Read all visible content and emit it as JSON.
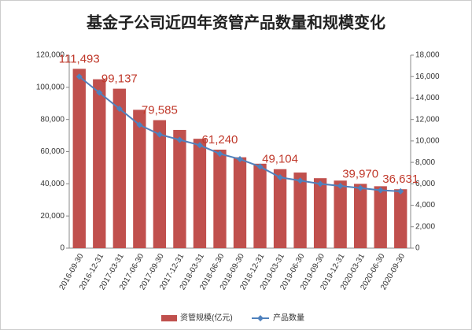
{
  "chart_data": {
    "type": "bar",
    "title": "基金子公司近四年资管产品数量和规模变化",
    "categories": [
      "2016-09-30",
      "2016-12-31",
      "2017-03-31",
      "2017-06-30",
      "2017-09-30",
      "2017-12-31",
      "2018-03-31",
      "2018-06-30",
      "2018-09-30",
      "2018-12-31",
      "2019-03-31",
      "2019-06-30",
      "2019-09-30",
      "2019-12-31",
      "2020-03-31",
      "2020-06-30",
      "2020-09-30"
    ],
    "series": [
      {
        "name": "资管规模(亿元)",
        "color": "#c0504d",
        "values": [
          111493,
          105000,
          99137,
          86000,
          79585,
          73500,
          68000,
          61240,
          56500,
          52500,
          49104,
          47000,
          43500,
          42000,
          39970,
          38500,
          36631
        ],
        "value_labels": [
          "111,493",
          null,
          "99,137",
          null,
          "79,585",
          null,
          null,
          "61,240",
          null,
          null,
          "49,104",
          null,
          null,
          null,
          "39,970",
          null,
          "36,631"
        ]
      },
      {
        "name": "产品数量",
        "color": "#4f81bd",
        "type": "line",
        "axis": "y2",
        "values": [
          16000,
          14500,
          13000,
          11500,
          10600,
          10100,
          9600,
          8800,
          8300,
          7600,
          6600,
          6300,
          6000,
          5800,
          5600,
          5400,
          5300
        ]
      }
    ],
    "ylim": [
      0,
      120000
    ],
    "yticks": [
      0,
      {
        "value": 20000,
        "label": "20,000"
      },
      {
        "value": 40000,
        "label": "40,000"
      },
      {
        "value": 60000,
        "label": "60,000"
      },
      {
        "value": 80000,
        "label": "80,000"
      },
      {
        "value": 100000,
        "label": "100,000"
      },
      {
        "value": 120000,
        "label": "120,000"
      }
    ],
    "y2lim": [
      0,
      18000
    ],
    "y2ticks": [
      0,
      {
        "value": 2000,
        "label": "2,000"
      },
      {
        "value": 4000,
        "label": "4,000"
      },
      {
        "value": 6000,
        "label": "6,000"
      },
      {
        "value": 8000,
        "label": "8,000"
      },
      {
        "value": 10000,
        "label": "10,000"
      },
      {
        "value": 12000,
        "label": "12,000"
      },
      {
        "value": 14000,
        "label": "14,000"
      },
      {
        "value": 16000,
        "label": "16,000"
      },
      {
        "value": 18000,
        "label": "18,000"
      }
    ],
    "legend": "bottom"
  }
}
